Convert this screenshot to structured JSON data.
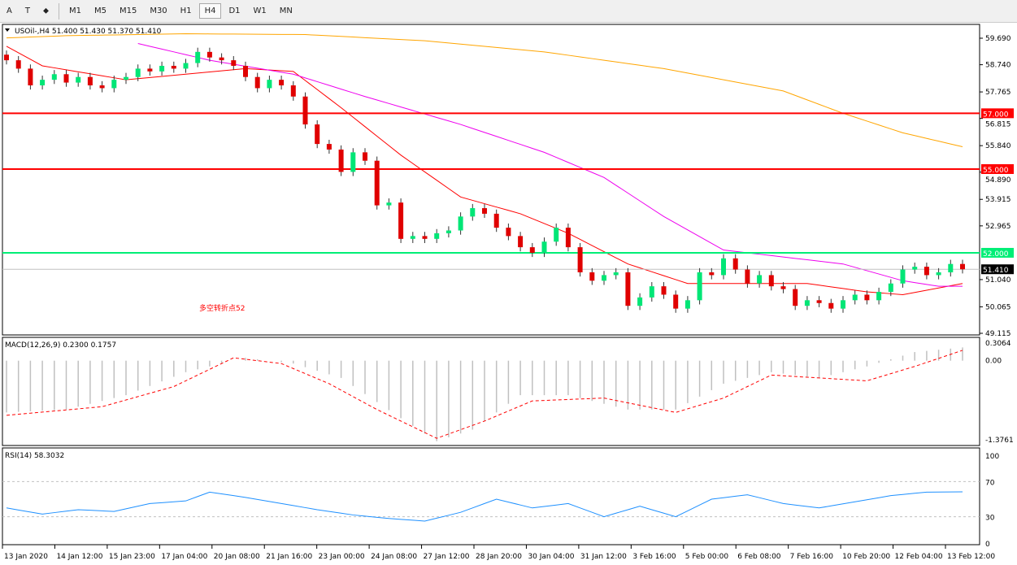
{
  "toolbar": {
    "tools": [
      "A",
      "T",
      "⬥"
    ],
    "timeframes": [
      "M1",
      "M5",
      "M15",
      "M30",
      "H1",
      "H4",
      "D1",
      "W1",
      "MN"
    ],
    "active": "H4"
  },
  "chart_data": [
    {
      "type": "candlestick",
      "title": "USOil-,H4  51.400 51.430 51.370 51.410",
      "ylim": [
        49.115,
        59.69
      ],
      "y_ticks": [
        "59.690",
        "58.740",
        "57.765",
        "56.815",
        "55.840",
        "54.890",
        "53.915",
        "52.965",
        "51.040",
        "50.065",
        "49.115"
      ],
      "first_open": 59.1,
      "closes": [
        58.9,
        58.6,
        58.0,
        58.2,
        58.4,
        58.1,
        58.3,
        58.0,
        57.9,
        58.2,
        58.3,
        58.6,
        58.5,
        58.7,
        58.6,
        58.8,
        59.2,
        59.0,
        58.9,
        58.7,
        58.3,
        57.9,
        58.2,
        58.0,
        57.6,
        56.6,
        55.9,
        55.7,
        54.9,
        55.6,
        55.3,
        53.7,
        53.8,
        52.5,
        52.6,
        52.5,
        52.7,
        52.8,
        53.3,
        53.6,
        53.4,
        52.9,
        52.6,
        52.2,
        52.0,
        52.4,
        52.9,
        52.2,
        51.3,
        51.0,
        51.2,
        51.3,
        50.1,
        50.4,
        50.8,
        50.5,
        50.0,
        50.3,
        51.3,
        51.2,
        51.8,
        51.4,
        50.9,
        51.2,
        50.8,
        50.7,
        50.1,
        50.3,
        50.2,
        50.0,
        50.3,
        50.5,
        50.3,
        50.6,
        50.9,
        51.4,
        51.5,
        51.2,
        51.3,
        51.6,
        51.41
      ],
      "moving_averages": [
        {
          "color": "#ff0000",
          "points": [
            [
              0,
              59.4
            ],
            [
              3,
              58.7
            ],
            [
              10,
              58.2
            ],
            [
              15,
              58.4
            ],
            [
              20,
              58.6
            ],
            [
              24,
              58.5
            ],
            [
              28,
              57.2
            ],
            [
              33,
              55.5
            ],
            [
              38,
              54.0
            ],
            [
              43,
              53.4
            ],
            [
              47,
              52.7
            ],
            [
              52,
              51.6
            ],
            [
              57,
              50.9
            ],
            [
              62,
              50.9
            ],
            [
              67,
              50.9
            ],
            [
              72,
              50.6
            ],
            [
              75,
              50.5
            ],
            [
              80,
              50.9
            ]
          ]
        },
        {
          "color": "#ee00ee",
          "points": [
            [
              11,
              59.5
            ],
            [
              17,
              58.9
            ],
            [
              24,
              58.4
            ],
            [
              30,
              57.6
            ],
            [
              38,
              56.6
            ],
            [
              45,
              55.6
            ],
            [
              50,
              54.7
            ],
            [
              55,
              53.3
            ],
            [
              60,
              52.1
            ],
            [
              64,
              51.9
            ],
            [
              70,
              51.6
            ],
            [
              75,
              51.0
            ],
            [
              78,
              50.8
            ],
            [
              80,
              50.8
            ]
          ]
        },
        {
          "color": "#ffa500",
          "points": [
            [
              0,
              59.7
            ],
            [
              5,
              59.78
            ],
            [
              15,
              59.85
            ],
            [
              25,
              59.82
            ],
            [
              35,
              59.6
            ],
            [
              45,
              59.2
            ],
            [
              55,
              58.6
            ],
            [
              65,
              57.8
            ],
            [
              70,
              57.0
            ],
            [
              75,
              56.3
            ],
            [
              80,
              55.8
            ]
          ]
        }
      ],
      "levels": [
        {
          "value": 57.0,
          "label": "57.000",
          "color": "#ff0000"
        },
        {
          "value": 55.0,
          "label": "55.000",
          "color": "#ff0000"
        },
        {
          "value": 52.0,
          "label": "52.000",
          "color": "#00ee76"
        }
      ],
      "current": {
        "value": 51.41,
        "label": "51.410"
      },
      "annotation": "多空转折点52",
      "colors": {
        "up": "#00e676",
        "down": "#e00000"
      }
    },
    {
      "type": "bar+line",
      "title": "MACD(12,26,9) 0.2300 0.1757",
      "ylim": [
        -1.3761,
        0.3064
      ],
      "y_ticks": [
        "0.3064",
        "0.00",
        "-1.3761"
      ],
      "main": [
        [
          0,
          -0.9
        ],
        [
          5,
          -0.85
        ],
        [
          10,
          -0.6
        ],
        [
          15,
          -0.2
        ],
        [
          20,
          0.05
        ],
        [
          24,
          -0.05
        ],
        [
          28,
          -0.3
        ],
        [
          33,
          -1.0
        ],
        [
          36,
          -1.4
        ],
        [
          39,
          -1.2
        ],
        [
          43,
          -0.6
        ],
        [
          47,
          -0.6
        ],
        [
          52,
          -0.85
        ],
        [
          56,
          -0.85
        ],
        [
          60,
          -0.4
        ],
        [
          64,
          -0.2
        ],
        [
          68,
          -0.3
        ],
        [
          72,
          -0.1
        ],
        [
          76,
          0.15
        ],
        [
          80,
          0.23
        ]
      ],
      "signal": [
        [
          0,
          -0.95
        ],
        [
          8,
          -0.8
        ],
        [
          14,
          -0.45
        ],
        [
          19,
          0.05
        ],
        [
          23,
          -0.05
        ],
        [
          27,
          -0.4
        ],
        [
          31,
          -0.85
        ],
        [
          36,
          -1.35
        ],
        [
          40,
          -1.05
        ],
        [
          44,
          -0.7
        ],
        [
          50,
          -0.65
        ],
        [
          56,
          -0.9
        ],
        [
          60,
          -0.65
        ],
        [
          64,
          -0.25
        ],
        [
          68,
          -0.3
        ],
        [
          72,
          -0.35
        ],
        [
          76,
          -0.1
        ],
        [
          80,
          0.18
        ]
      ]
    },
    {
      "type": "line",
      "title": "RSI(14) 58.3032",
      "ylim": [
        0,
        100
      ],
      "y_ticks": [
        "100",
        "70",
        "30",
        "0"
      ],
      "levels": [
        70,
        30
      ],
      "values": [
        [
          0,
          40
        ],
        [
          3,
          33
        ],
        [
          6,
          38
        ],
        [
          9,
          36
        ],
        [
          12,
          45
        ],
        [
          15,
          48
        ],
        [
          17,
          58
        ],
        [
          20,
          52
        ],
        [
          23,
          45
        ],
        [
          26,
          38
        ],
        [
          29,
          32
        ],
        [
          32,
          28
        ],
        [
          35,
          25
        ],
        [
          38,
          35
        ],
        [
          41,
          50
        ],
        [
          44,
          40
        ],
        [
          47,
          45
        ],
        [
          50,
          30
        ],
        [
          53,
          42
        ],
        [
          56,
          30
        ],
        [
          59,
          50
        ],
        [
          62,
          55
        ],
        [
          65,
          45
        ],
        [
          68,
          40
        ],
        [
          71,
          47
        ],
        [
          74,
          54
        ],
        [
          77,
          58
        ],
        [
          80,
          58.3
        ]
      ]
    }
  ],
  "x_labels": [
    "13 Jan 2020",
    "14 Jan 12:00",
    "15 Jan 23:00",
    "17 Jan 04:00",
    "20 Jan 08:00",
    "21 Jan 16:00",
    "23 Jan 00:00",
    "24 Jan 08:00",
    "27 Jan 12:00",
    "28 Jan 20:00",
    "30 Jan 04:00",
    "31 Jan 12:00",
    "3 Feb 16:00",
    "5 Feb 00:00",
    "6 Feb 08:00",
    "7 Feb 16:00",
    "10 Feb 20:00",
    "12 Feb 04:00",
    "13 Feb 12:00"
  ]
}
